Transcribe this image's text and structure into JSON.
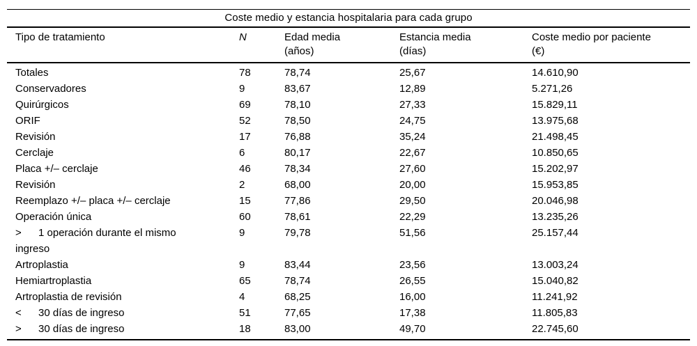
{
  "table": {
    "title": "Coste medio y estancia hospitalaria para cada grupo",
    "header": {
      "c1": {
        "line1": "Tipo de tratamiento",
        "line2": ""
      },
      "c2": {
        "line1": "N",
        "line2": ""
      },
      "c3": {
        "line1": "Edad media",
        "line2": "(años)"
      },
      "c4": {
        "line1": "Estancia media",
        "line2": "(días)"
      },
      "c5": {
        "line1": "Coste medio por paciente",
        "line2": "(€)"
      }
    },
    "rows": [
      {
        "prefix": "",
        "tipo": "Totales",
        "tipo_line2": "",
        "n": "78",
        "edad": "78,74",
        "estancia": "25,67",
        "coste": "14.610,90"
      },
      {
        "prefix": "",
        "tipo": "Conservadores",
        "tipo_line2": "",
        "n": "9",
        "edad": "83,67",
        "estancia": "12,89",
        "coste": "5.271,26"
      },
      {
        "prefix": "",
        "tipo": "Quirúrgicos",
        "tipo_line2": "",
        "n": "69",
        "edad": "78,10",
        "estancia": "27,33",
        "coste": "15.829,11"
      },
      {
        "prefix": "",
        "tipo": "ORIF",
        "tipo_line2": "",
        "n": "52",
        "edad": "78,50",
        "estancia": "24,75",
        "coste": "13.975,68"
      },
      {
        "prefix": "",
        "tipo": "Revisión",
        "tipo_line2": "",
        "n": "17",
        "edad": "76,88",
        "estancia": "35,24",
        "coste": "21.498,45"
      },
      {
        "prefix": "",
        "tipo": "Cerclaje",
        "tipo_line2": "",
        "n": "6",
        "edad": "80,17",
        "estancia": "22,67",
        "coste": "10.850,65"
      },
      {
        "prefix": "",
        "tipo": "Placa +/– cerclaje",
        "tipo_line2": "",
        "n": "46",
        "edad": "78,34",
        "estancia": "27,60",
        "coste": "15.202,97"
      },
      {
        "prefix": "",
        "tipo": "Revisión",
        "tipo_line2": "",
        "n": "2",
        "edad": "68,00",
        "estancia": "20,00",
        "coste": "15.953,85"
      },
      {
        "prefix": "",
        "tipo": "Reemplazo +/– placa +/– cerclaje",
        "tipo_line2": "",
        "n": "15",
        "edad": "77,86",
        "estancia": "29,50",
        "coste": "20.046,98"
      },
      {
        "prefix": "",
        "tipo": "Operación única",
        "tipo_line2": "",
        "n": "60",
        "edad": "78,61",
        "estancia": "22,29",
        "coste": "13.235,26"
      },
      {
        "prefix": ">",
        "tipo": "1 operación durante el mismo",
        "tipo_line2": "ingreso",
        "n": "9",
        "edad": "79,78",
        "estancia": "51,56",
        "coste": "25.157,44"
      },
      {
        "prefix": "",
        "tipo": "Artroplastia",
        "tipo_line2": "",
        "n": "9",
        "edad": "83,44",
        "estancia": "23,56",
        "coste": "13.003,24"
      },
      {
        "prefix": "",
        "tipo": "Hemiartroplastia",
        "tipo_line2": "",
        "n": "65",
        "edad": "78,74",
        "estancia": "26,55",
        "coste": "15.040,82"
      },
      {
        "prefix": "",
        "tipo": "Artroplastia de revisión",
        "tipo_line2": "",
        "n": "4",
        "edad": "68,25",
        "estancia": "16,00",
        "coste": "11.241,92"
      },
      {
        "prefix": "<",
        "tipo": "30 días de ingreso",
        "tipo_line2": "",
        "n": "51",
        "edad": "77,65",
        "estancia": "17,38",
        "coste": "11.805,83"
      },
      {
        "prefix": ">",
        "tipo": "30 días de ingreso",
        "tipo_line2": "",
        "n": "18",
        "edad": "83,00",
        "estancia": "49,70",
        "coste": "22.745,60"
      }
    ]
  }
}
